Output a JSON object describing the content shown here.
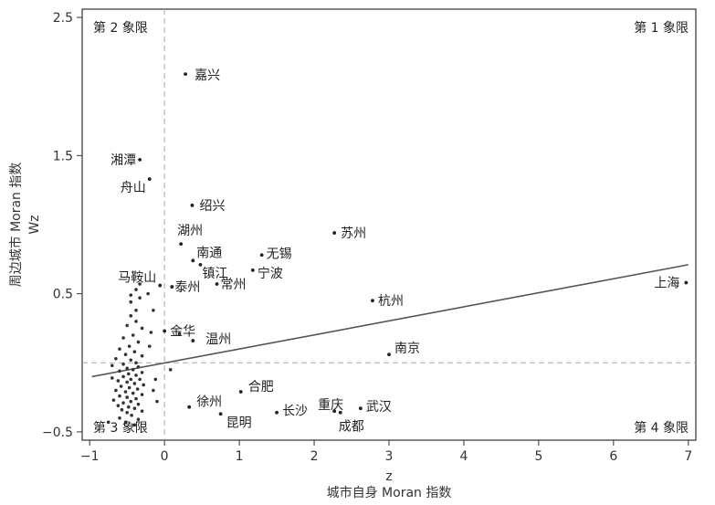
{
  "chart_data": {
    "type": "scatter",
    "title": "",
    "xlabel_top": "z",
    "xlabel": "城市自身 Moran 指数",
    "ylabel": "周边城市 Moran 指数",
    "ylabel_sub": "Wz",
    "xlim": [
      -1.1,
      7.1
    ],
    "ylim": [
      -0.56,
      2.56
    ],
    "xticks": [
      "−1",
      "0",
      "1",
      "2",
      "3",
      "4",
      "5",
      "6",
      "7"
    ],
    "xtick_values": [
      -1,
      0,
      1,
      2,
      3,
      4,
      5,
      6,
      7
    ],
    "yticks": [
      "2.5",
      "1.5",
      "0.5",
      "−0.5"
    ],
    "ytick_values": [
      2.5,
      1.5,
      0.5,
      -0.5
    ],
    "reference_lines": {
      "x": 0,
      "y": 0
    },
    "regression_line": {
      "x": [
        -0.97,
        7.0
      ],
      "y": [
        -0.1,
        0.71
      ]
    },
    "quadrants": {
      "q1": "第 1 象限",
      "q2": "第 2 象限",
      "q3": "第 3 象限",
      "q4": "第 4 象限"
    },
    "labeled_points": [
      {
        "name": "嘉兴",
        "x": 0.28,
        "y": 2.09
      },
      {
        "name": "湘潭",
        "x": -0.33,
        "y": 1.47
      },
      {
        "name": "舟山",
        "x": -0.2,
        "y": 1.33
      },
      {
        "name": "绍兴",
        "x": 0.37,
        "y": 1.14
      },
      {
        "name": "苏州",
        "x": 2.27,
        "y": 0.94
      },
      {
        "name": "湖州",
        "x": 0.22,
        "y": 0.86
      },
      {
        "name": "南通",
        "x": 0.38,
        "y": 0.74
      },
      {
        "name": "无锡",
        "x": 1.3,
        "y": 0.78
      },
      {
        "name": "镇江",
        "x": 0.48,
        "y": 0.71
      },
      {
        "name": "宁波",
        "x": 1.18,
        "y": 0.67
      },
      {
        "name": "马鞍山",
        "x": -0.06,
        "y": 0.56
      },
      {
        "name": "泰州",
        "x": 0.1,
        "y": 0.55
      },
      {
        "name": "常州",
        "x": 0.7,
        "y": 0.57
      },
      {
        "name": "上海",
        "x": 6.97,
        "y": 0.58
      },
      {
        "name": "杭州",
        "x": 2.78,
        "y": 0.45
      },
      {
        "name": "金华",
        "x": 0.0,
        "y": 0.23
      },
      {
        "name": "温州",
        "x": 0.38,
        "y": 0.16
      },
      {
        "name": "南京",
        "x": 3.0,
        "y": 0.06
      },
      {
        "name": "合肥",
        "x": 1.02,
        "y": -0.21
      },
      {
        "name": "徐州",
        "x": 0.33,
        "y": -0.32
      },
      {
        "name": "重庆",
        "x": 2.27,
        "y": -0.35
      },
      {
        "name": "武汉",
        "x": 2.62,
        "y": -0.33
      },
      {
        "name": "长沙",
        "x": 1.5,
        "y": -0.36
      },
      {
        "name": "昆明",
        "x": 0.75,
        "y": -0.37
      },
      {
        "name": "成都",
        "x": 2.35,
        "y": -0.36
      }
    ],
    "unlabeled_points": [
      [
        -0.33,
        0.57
      ],
      [
        -0.38,
        0.53
      ],
      [
        -0.45,
        0.49
      ],
      [
        -0.33,
        0.47
      ],
      [
        -0.45,
        0.44
      ],
      [
        -0.38,
        0.38
      ],
      [
        -0.45,
        0.34
      ],
      [
        -0.38,
        0.3
      ],
      [
        -0.5,
        0.27
      ],
      [
        -0.3,
        0.25
      ],
      [
        -0.42,
        0.2
      ],
      [
        -0.55,
        0.18
      ],
      [
        -0.35,
        0.15
      ],
      [
        -0.47,
        0.12
      ],
      [
        -0.6,
        0.1
      ],
      [
        -0.4,
        0.08
      ],
      [
        -0.52,
        0.06
      ],
      [
        -0.3,
        0.05
      ],
      [
        -0.65,
        0.03
      ],
      [
        -0.45,
        0.02
      ],
      [
        -0.38,
        0.0
      ],
      [
        -0.55,
        -0.01
      ],
      [
        -0.7,
        -0.02
      ],
      [
        -0.35,
        -0.03
      ],
      [
        -0.5,
        -0.04
      ],
      [
        -0.42,
        -0.05
      ],
      [
        -0.6,
        -0.06
      ],
      [
        -0.3,
        -0.07
      ],
      [
        -0.48,
        -0.08
      ],
      [
        -0.38,
        -0.09
      ],
      [
        -0.55,
        -0.1
      ],
      [
        -0.7,
        -0.11
      ],
      [
        -0.45,
        -0.12
      ],
      [
        -0.33,
        -0.12
      ],
      [
        -0.62,
        -0.13
      ],
      [
        -0.5,
        -0.14
      ],
      [
        -0.4,
        -0.15
      ],
      [
        -0.28,
        -0.16
      ],
      [
        -0.58,
        -0.17
      ],
      [
        -0.47,
        -0.18
      ],
      [
        -0.36,
        -0.19
      ],
      [
        -0.65,
        -0.2
      ],
      [
        -0.52,
        -0.21
      ],
      [
        -0.42,
        -0.22
      ],
      [
        -0.3,
        -0.23
      ],
      [
        -0.6,
        -0.24
      ],
      [
        -0.5,
        -0.25
      ],
      [
        -0.38,
        -0.26
      ],
      [
        -0.68,
        -0.27
      ],
      [
        -0.45,
        -0.28
      ],
      [
        -0.55,
        -0.29
      ],
      [
        -0.35,
        -0.3
      ],
      [
        -0.62,
        -0.31
      ],
      [
        -0.48,
        -0.32
      ],
      [
        -0.4,
        -0.33
      ],
      [
        -0.57,
        -0.34
      ],
      [
        -0.3,
        -0.35
      ],
      [
        -0.5,
        -0.36
      ],
      [
        -0.44,
        -0.38
      ],
      [
        -0.6,
        -0.4
      ],
      [
        -0.35,
        -0.41
      ],
      [
        -0.52,
        -0.43
      ],
      [
        -0.75,
        -0.43
      ],
      [
        -0.4,
        -0.45
      ],
      [
        -0.22,
        0.5
      ],
      [
        -0.15,
        0.38
      ],
      [
        -0.18,
        0.22
      ],
      [
        -0.12,
        -0.12
      ],
      [
        -0.15,
        -0.2
      ],
      [
        -0.1,
        -0.28
      ],
      [
        0.2,
        0.21
      ],
      [
        0.08,
        -0.05
      ],
      [
        -0.2,
        0.12
      ]
    ]
  }
}
